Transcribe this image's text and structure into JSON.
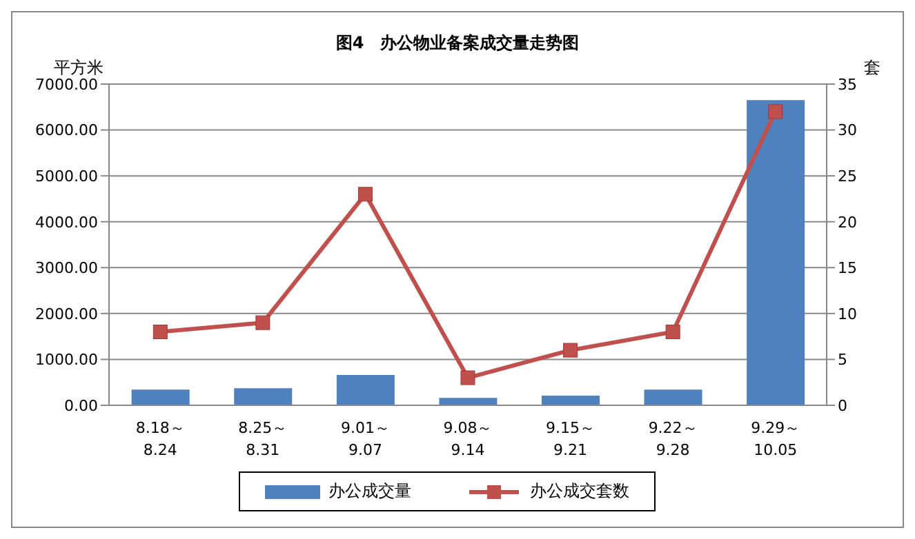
{
  "chart_data": {
    "type": "bar",
    "title": "图4　办公物业备案成交量走势图",
    "ylabel": "平方米",
    "y2label": "套",
    "categories": [
      "8.18～\n8.24",
      "8.25～\n8.31",
      "9.01～\n9.07",
      "9.08～\n9.14",
      "9.15～\n9.21",
      "9.22～\n9.28",
      "9.29～\n10.05"
    ],
    "series": [
      {
        "name": "办公成交量",
        "color": "#4f81bd",
        "values": [
          340,
          370,
          660,
          160,
          210,
          340,
          6650
        ]
      },
      {
        "name": "办公成交套数",
        "type": "line",
        "axis": "y2",
        "color": "#c0504d",
        "marker": "square",
        "values": [
          8,
          9,
          23,
          3,
          6,
          8,
          32
        ]
      }
    ],
    "ylim": [
      0,
      7000
    ],
    "yticks": [
      {
        "value": 0,
        "label": "0.00"
      },
      {
        "value": 1000,
        "label": "1000.00"
      },
      {
        "value": 2000,
        "label": "2000.00"
      },
      {
        "value": 3000,
        "label": "3000.00"
      },
      {
        "value": 4000,
        "label": "4000.00"
      },
      {
        "value": 5000,
        "label": "5000.00"
      },
      {
        "value": 6000,
        "label": "6000.00"
      },
      {
        "value": 7000,
        "label": "7000.00"
      }
    ],
    "y2lim": [
      0,
      35
    ],
    "y2ticks": [
      0,
      5,
      10,
      15,
      20,
      25,
      30,
      35
    ],
    "grid": "y",
    "legend": "bottom"
  }
}
